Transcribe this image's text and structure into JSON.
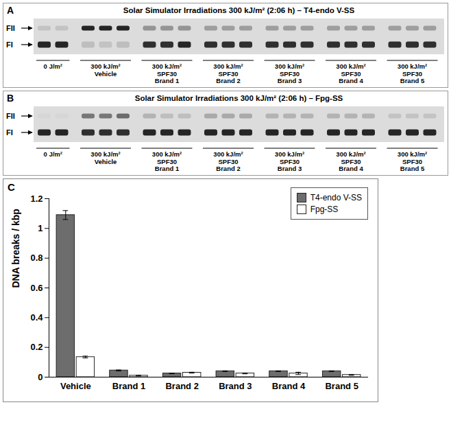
{
  "panel_letters": [
    "A",
    "B",
    "C"
  ],
  "gels": [
    {
      "title": "Solar Simulator Irradiations 300 kJ/m² (2:06 h) – T4-endo V-SS",
      "bands": [
        "FII",
        "FI"
      ],
      "groups": [
        {
          "label": [
            "0 J/m²"
          ],
          "FII": [
            0.12,
            0.12
          ],
          "FI": [
            0.9,
            0.9
          ]
        },
        {
          "label": [
            "300 kJ/m²",
            "Vehicle"
          ],
          "FII": [
            0.9,
            0.9,
            0.9
          ],
          "FI": [
            0.15,
            0.12,
            0.15
          ]
        },
        {
          "label": [
            "300 kJ/m²",
            "SPF30",
            "Brand 1"
          ],
          "FII": [
            0.35,
            0.35,
            0.35
          ],
          "FI": [
            0.85,
            0.85,
            0.9
          ]
        },
        {
          "label": [
            "300 kJ/m²",
            "SPF30",
            "Brand 2"
          ],
          "FII": [
            0.3,
            0.3,
            0.3
          ],
          "FI": [
            0.85,
            0.85,
            0.85
          ]
        },
        {
          "label": [
            "300 kJ/m²",
            "SPF30",
            "Brand 3"
          ],
          "FII": [
            0.3,
            0.3,
            0.3
          ],
          "FI": [
            0.85,
            0.85,
            0.85
          ]
        },
        {
          "label": [
            "300 kJ/m²",
            "SPF30",
            "Brand 4"
          ],
          "FII": [
            0.3,
            0.3,
            0.3
          ],
          "FI": [
            0.85,
            0.85,
            0.85
          ]
        },
        {
          "label": [
            "300 kJ/m²",
            "SPF30",
            "Brand 5"
          ],
          "FII": [
            0.3,
            0.3,
            0.3
          ],
          "FI": [
            0.85,
            0.85,
            0.85
          ]
        }
      ]
    },
    {
      "title": "Solar Simulator Irradiations 300 kJ/m² (2:06 h) – Fpg-SS",
      "bands": [
        "FII",
        "FI"
      ],
      "groups": [
        {
          "label": [
            "0 J/m²"
          ],
          "FII": [
            0.03,
            0.03
          ],
          "FI": [
            0.9,
            0.9
          ]
        },
        {
          "label": [
            "300 kJ/m²",
            "Vehicle"
          ],
          "FII": [
            0.5,
            0.5,
            0.55
          ],
          "FI": [
            0.85,
            0.85,
            0.85
          ]
        },
        {
          "label": [
            "300 kJ/m²",
            "SPF30",
            "Brand 1"
          ],
          "FII": [
            0.2,
            0.15,
            0.15
          ],
          "FI": [
            0.9,
            0.9,
            0.9
          ]
        },
        {
          "label": [
            "300 kJ/m²",
            "SPF30",
            "Brand 2"
          ],
          "FII": [
            0.25,
            0.25,
            0.25
          ],
          "FI": [
            0.9,
            0.9,
            0.9
          ]
        },
        {
          "label": [
            "300 kJ/m²",
            "SPF30",
            "Brand 3"
          ],
          "FII": [
            0.2,
            0.2,
            0.2
          ],
          "FI": [
            0.9,
            0.9,
            0.9
          ]
        },
        {
          "label": [
            "300 kJ/m²",
            "SPF30",
            "Brand 4"
          ],
          "FII": [
            0.2,
            0.2,
            0.2
          ],
          "FI": [
            0.9,
            0.9,
            0.9
          ]
        },
        {
          "label": [
            "300 kJ/m²",
            "SPF30",
            "Brand 5"
          ],
          "FII": [
            0.12,
            0.12,
            0.12
          ],
          "FI": [
            0.9,
            0.9,
            0.9
          ]
        }
      ]
    }
  ],
  "chart_data": {
    "type": "bar",
    "ylabel": "DNA breaks / kbp",
    "categories": [
      "Vehicle",
      "Brand 1",
      "Brand 2",
      "Brand 3",
      "Brand 4",
      "Brand 5"
    ],
    "series": [
      {
        "name": "T4-endo V-SS",
        "color": "#6d6d6d",
        "values": [
          1.09,
          0.045,
          0.025,
          0.04,
          0.04,
          0.04
        ],
        "errors": [
          0.03,
          0.003,
          0.002,
          0.002,
          0.002,
          0.002
        ]
      },
      {
        "name": "Fpg-SS",
        "color": "#ffffff",
        "values": [
          0.135,
          0.01,
          0.03,
          0.025,
          0.025,
          0.015
        ],
        "errors": [
          0.006,
          0.002,
          0.003,
          0.003,
          0.008,
          0.003
        ]
      }
    ],
    "ylim": [
      0,
      1.2
    ],
    "yticks": [
      0,
      0.2,
      0.4,
      0.6,
      0.8,
      1,
      1.2
    ],
    "grid": false,
    "legend": "top-right"
  }
}
